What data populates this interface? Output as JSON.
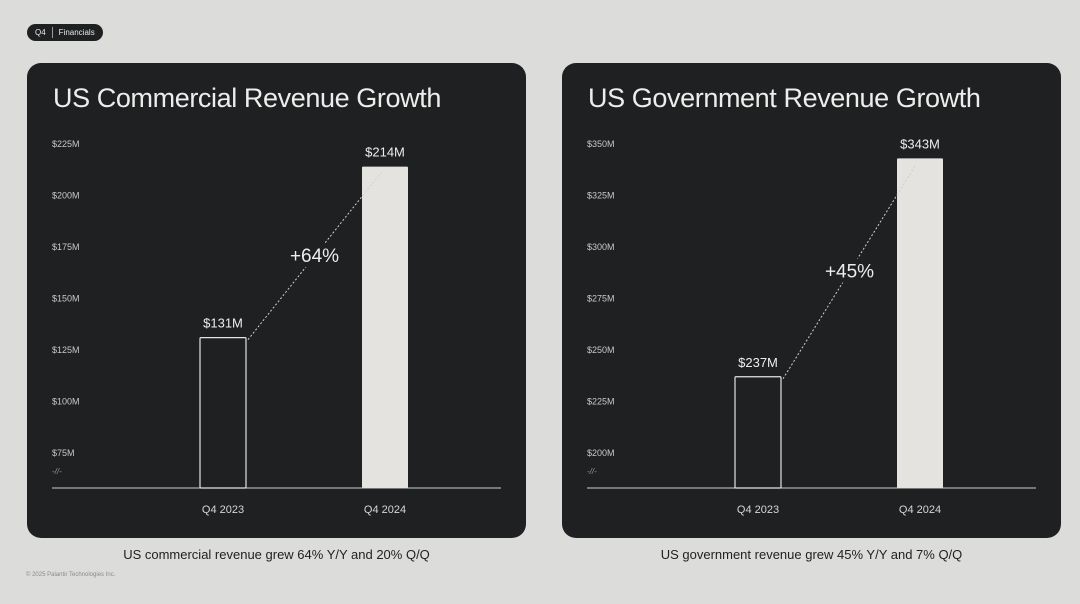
{
  "header": {
    "quarter": "Q4",
    "section": "Financials"
  },
  "footer": {
    "copyright": "© 2025 Palantir Technologies Inc."
  },
  "colors": {
    "background": "#dcdcda",
    "card": "#1e2022",
    "text": "#ededeb",
    "bar_2024": "#e4e3e0"
  },
  "axis_break_label": "-//-",
  "chart_data": [
    {
      "type": "bar",
      "title": "US Commercial Revenue Growth",
      "categories": [
        "Q4 2023",
        "Q4 2024"
      ],
      "values": [
        131,
        214
      ],
      "value_labels": [
        "$131M",
        "$214M"
      ],
      "y_ticks": [
        "$75M",
        "$100M",
        "$125M",
        "$150M",
        "$175M",
        "$200M",
        "$225M"
      ],
      "ylim": [
        75,
        225
      ],
      "growth_label": "+64%",
      "caption": "US commercial revenue grew 64% Y/Y and 20% Q/Q",
      "grid": false
    },
    {
      "type": "bar",
      "title": "US Government Revenue Growth",
      "categories": [
        "Q4 2023",
        "Q4 2024"
      ],
      "values": [
        237,
        343
      ],
      "value_labels": [
        "$237M",
        "$343M"
      ],
      "y_ticks": [
        "$200M",
        "$225M",
        "$250M",
        "$275M",
        "$300M",
        "$325M",
        "$350M"
      ],
      "ylim": [
        200,
        350
      ],
      "growth_label": "+45%",
      "caption": "US government revenue grew 45% Y/Y and 7% Q/Q",
      "grid": false
    }
  ]
}
